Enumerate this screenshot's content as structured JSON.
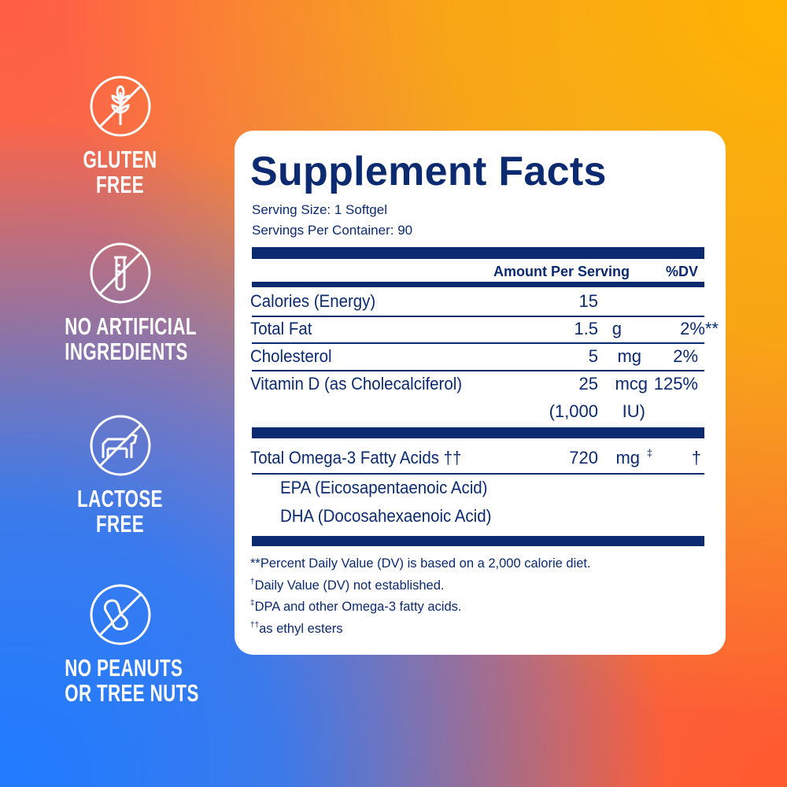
{
  "badges": [
    {
      "icon": "no-gluten-wheat-icon",
      "label": [
        "GLUTEN",
        "FREE"
      ]
    },
    {
      "icon": "no-test-tube-icon",
      "label": [
        "NO ARTIFICIAL",
        "INGREDIENTS"
      ]
    },
    {
      "icon": "no-cow-dairy-icon",
      "label": [
        "LACTOSE",
        "FREE"
      ]
    },
    {
      "icon": "no-peanut-icon",
      "label": [
        "NO PEANUTS",
        "OR TREE NUTS"
      ]
    }
  ],
  "facts": {
    "title": "Supplement Facts",
    "serving_size": "Serving Size: 1 Softgel",
    "servings_per_container": "Servings Per Container: 90",
    "header_amount": "Amount Per Serving",
    "header_dv": "%DV",
    "rows": [
      {
        "label": "Calories (Energy)",
        "amount": "15",
        "unit": "",
        "dv": ""
      },
      {
        "label": "Total Fat",
        "amount": "1.5",
        "unit": "g",
        "dv": "2%**"
      },
      {
        "label": "Cholesterol",
        "amount": "5",
        "unit": "mg",
        "dv": "2%"
      },
      {
        "label": "Vitamin D (as Cholecalciferol)",
        "amount": "25",
        "unit": "mcg",
        "dv": "125%",
        "amount2": "(1,000",
        "unit2": "IU)"
      },
      {
        "label": "Total Omega-3 Fatty Acids ††",
        "amount": "720",
        "unit": "mg",
        "unit_mark": "‡",
        "dv": "†"
      },
      {
        "label": "EPA (Eicosapentaenoic Acid)"
      },
      {
        "label": "DHA (Docosahexaenoic Acid)"
      }
    ],
    "footnotes": [
      {
        "mark": "",
        "text": "**Percent Daily Value (DV) is based on a 2,000 calorie diet."
      },
      {
        "mark": "†",
        "text": "Daily Value (DV) not established."
      },
      {
        "mark": "‡",
        "text": "DPA and other Omega-3 fatty acids."
      },
      {
        "mark": "††",
        "text": "as ethyl esters"
      }
    ]
  },
  "colors": {
    "navy": "#0b2a6f",
    "card": "#ffffff",
    "badge_text": "#ffffff"
  }
}
